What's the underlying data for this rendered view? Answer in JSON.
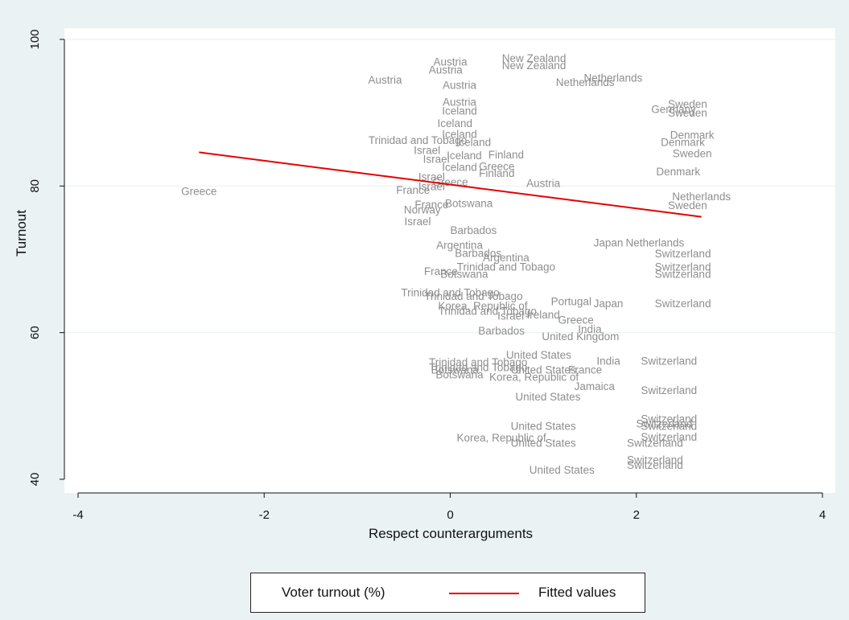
{
  "chart_data": {
    "type": "scatter",
    "xlabel": "Respect counterarguments",
    "ylabel": "Turnout",
    "xlim": [
      -4,
      4
    ],
    "ylim": [
      40,
      100
    ],
    "x_ticks": [
      "-4",
      "-2",
      "0",
      "2",
      "4"
    ],
    "y_ticks": [
      "40",
      "60",
      "80",
      "100"
    ],
    "grid": "horizontal",
    "legend_position": "bottom",
    "series": [
      {
        "name": "Voter turnout (%)",
        "color": "#8e8e8e",
        "marker": "country-label",
        "points": [
          {
            "label": "Greece",
            "x": -2.7,
            "y": 79.3
          },
          {
            "label": "Austria",
            "x": -0.7,
            "y": 94.5
          },
          {
            "label": "Trinidad and Tobago",
            "x": -0.35,
            "y": 86.3
          },
          {
            "label": "Israel",
            "x": -0.25,
            "y": 84.9
          },
          {
            "label": "Israel",
            "x": -0.15,
            "y": 83.7
          },
          {
            "label": "Israel",
            "x": -0.2,
            "y": 81.3
          },
          {
            "label": "Israel",
            "x": -0.2,
            "y": 80.0
          },
          {
            "label": "France",
            "x": -0.4,
            "y": 79.5
          },
          {
            "label": "Norway",
            "x": -0.3,
            "y": 76.8
          },
          {
            "label": "Israel",
            "x": -0.35,
            "y": 75.2
          },
          {
            "label": "Austria",
            "x": 0.0,
            "y": 97.0
          },
          {
            "label": "Austria",
            "x": -0.05,
            "y": 95.9
          },
          {
            "label": "New Zealand",
            "x": 0.9,
            "y": 97.5
          },
          {
            "label": "New Zealand",
            "x": 0.9,
            "y": 96.5
          },
          {
            "label": "Austria",
            "x": 0.1,
            "y": 93.8
          },
          {
            "label": "Austria",
            "x": 0.1,
            "y": 91.5
          },
          {
            "label": "Iceland",
            "x": 0.1,
            "y": 90.3
          },
          {
            "label": "Iceland",
            "x": 0.05,
            "y": 88.6
          },
          {
            "label": "Iceland",
            "x": 0.1,
            "y": 87.1
          },
          {
            "label": "Iceland",
            "x": 0.25,
            "y": 86.0
          },
          {
            "label": "Iceland",
            "x": 0.15,
            "y": 84.2
          },
          {
            "label": "Iceland",
            "x": 0.1,
            "y": 82.6
          },
          {
            "label": "Finland",
            "x": 0.6,
            "y": 84.3
          },
          {
            "label": "Greece",
            "x": 0.5,
            "y": 82.7
          },
          {
            "label": "Finland",
            "x": 0.5,
            "y": 81.8
          },
          {
            "label": "Greece",
            "x": 0.0,
            "y": 80.6
          },
          {
            "label": "Austria",
            "x": 1.0,
            "y": 80.4
          },
          {
            "label": "Netherlands",
            "x": 1.75,
            "y": 94.8
          },
          {
            "label": "Netherlands",
            "x": 1.45,
            "y": 94.2
          },
          {
            "label": "Sweden",
            "x": 2.55,
            "y": 91.2
          },
          {
            "label": "Germany",
            "x": 2.4,
            "y": 90.5
          },
          {
            "label": "Sweden",
            "x": 2.55,
            "y": 90.0
          },
          {
            "label": "Denmark",
            "x": 2.6,
            "y": 87.0
          },
          {
            "label": "Denmark",
            "x": 2.5,
            "y": 86.0
          },
          {
            "label": "Sweden",
            "x": 2.6,
            "y": 84.5
          },
          {
            "label": "Denmark",
            "x": 2.45,
            "y": 82.0
          },
          {
            "label": "Netherlands",
            "x": 2.7,
            "y": 78.6
          },
          {
            "label": "Sweden",
            "x": 2.55,
            "y": 77.4
          },
          {
            "label": "Netherlands",
            "x": 2.2,
            "y": 72.3
          },
          {
            "label": "Japan",
            "x": 1.7,
            "y": 72.3
          },
          {
            "label": "Switzerland",
            "x": 2.5,
            "y": 70.8
          },
          {
            "label": "Switzerland",
            "x": 2.5,
            "y": 69.0
          },
          {
            "label": "Switzerland",
            "x": 2.5,
            "y": 68.0
          },
          {
            "label": "Switzerland",
            "x": 2.5,
            "y": 64.0
          },
          {
            "label": "Japan",
            "x": 1.7,
            "y": 64.0
          },
          {
            "label": "Botswana",
            "x": 0.2,
            "y": 77.7
          },
          {
            "label": "France",
            "x": -0.2,
            "y": 77.5
          },
          {
            "label": "Barbados",
            "x": 0.25,
            "y": 74.0
          },
          {
            "label": "Argentina",
            "x": 0.1,
            "y": 72.0
          },
          {
            "label": "Barbados",
            "x": 0.3,
            "y": 70.9
          },
          {
            "label": "Argentina",
            "x": 0.6,
            "y": 70.3
          },
          {
            "label": "Trinidad and Tobago",
            "x": 0.6,
            "y": 69.0
          },
          {
            "label": "France",
            "x": -0.1,
            "y": 68.4
          },
          {
            "label": "Botswana",
            "x": 0.15,
            "y": 68.0
          },
          {
            "label": "Trinidad and Tobago",
            "x": 0.0,
            "y": 65.5
          },
          {
            "label": "Trinidad and Tobago",
            "x": 0.25,
            "y": 65.0
          },
          {
            "label": "Trinidad and Tobago",
            "x": 0.4,
            "y": 63.0
          },
          {
            "label": "Korea, Republic of",
            "x": 0.35,
            "y": 63.7
          },
          {
            "label": "Portugal",
            "x": 1.3,
            "y": 64.3
          },
          {
            "label": "Israel",
            "x": 0.65,
            "y": 62.3
          },
          {
            "label": "Ireland",
            "x": 1.0,
            "y": 62.5
          },
          {
            "label": "Greece",
            "x": 1.35,
            "y": 61.8
          },
          {
            "label": "Barbados",
            "x": 0.55,
            "y": 60.3
          },
          {
            "label": "India",
            "x": 1.5,
            "y": 60.5
          },
          {
            "label": "United Kingdom",
            "x": 1.4,
            "y": 59.5
          },
          {
            "label": "United States",
            "x": 0.95,
            "y": 57.0
          },
          {
            "label": "Trinidad and Tobago",
            "x": 0.3,
            "y": 56.0
          },
          {
            "label": "Trinidad and Tobago",
            "x": 0.3,
            "y": 55.3
          },
          {
            "label": "Botswana",
            "x": 0.05,
            "y": 55.0
          },
          {
            "label": "Botswana",
            "x": 0.1,
            "y": 54.3
          },
          {
            "label": "United States",
            "x": 1.0,
            "y": 55.0
          },
          {
            "label": "India",
            "x": 1.7,
            "y": 56.2
          },
          {
            "label": "France",
            "x": 1.45,
            "y": 55.0
          },
          {
            "label": "Korea, Republic of",
            "x": 0.9,
            "y": 54.0
          },
          {
            "label": "Switzerland",
            "x": 2.35,
            "y": 56.2
          },
          {
            "label": "Jamaica",
            "x": 1.55,
            "y": 52.7
          },
          {
            "label": "United States",
            "x": 1.05,
            "y": 51.3
          },
          {
            "label": "Switzerland",
            "x": 2.35,
            "y": 52.2
          },
          {
            "label": "Switzerland",
            "x": 2.35,
            "y": 48.3
          },
          {
            "label": "Switzerland",
            "x": 2.3,
            "y": 47.6
          },
          {
            "label": "Switzerland",
            "x": 2.35,
            "y": 47.3
          },
          {
            "label": "United States",
            "x": 1.0,
            "y": 47.3
          },
          {
            "label": "Korea, Republic of",
            "x": 0.55,
            "y": 45.7
          },
          {
            "label": "United States",
            "x": 1.0,
            "y": 45.0
          },
          {
            "label": "Switzerland",
            "x": 2.35,
            "y": 45.8
          },
          {
            "label": "Switzerland",
            "x": 2.2,
            "y": 45.0
          },
          {
            "label": "Switzerland",
            "x": 2.2,
            "y": 42.7
          },
          {
            "label": "Switzerland",
            "x": 2.2,
            "y": 42.0
          },
          {
            "label": "United States",
            "x": 1.2,
            "y": 41.3
          }
        ]
      },
      {
        "name": "Fitted values",
        "type": "line",
        "color": "#e60000",
        "points": [
          {
            "x": -2.7,
            "y": 84.6
          },
          {
            "x": 2.7,
            "y": 75.8
          }
        ]
      }
    ]
  },
  "legend": {
    "items": [
      {
        "label": "Voter turnout (%)"
      },
      {
        "label": "Fitted values",
        "color": "#e60000"
      }
    ]
  }
}
